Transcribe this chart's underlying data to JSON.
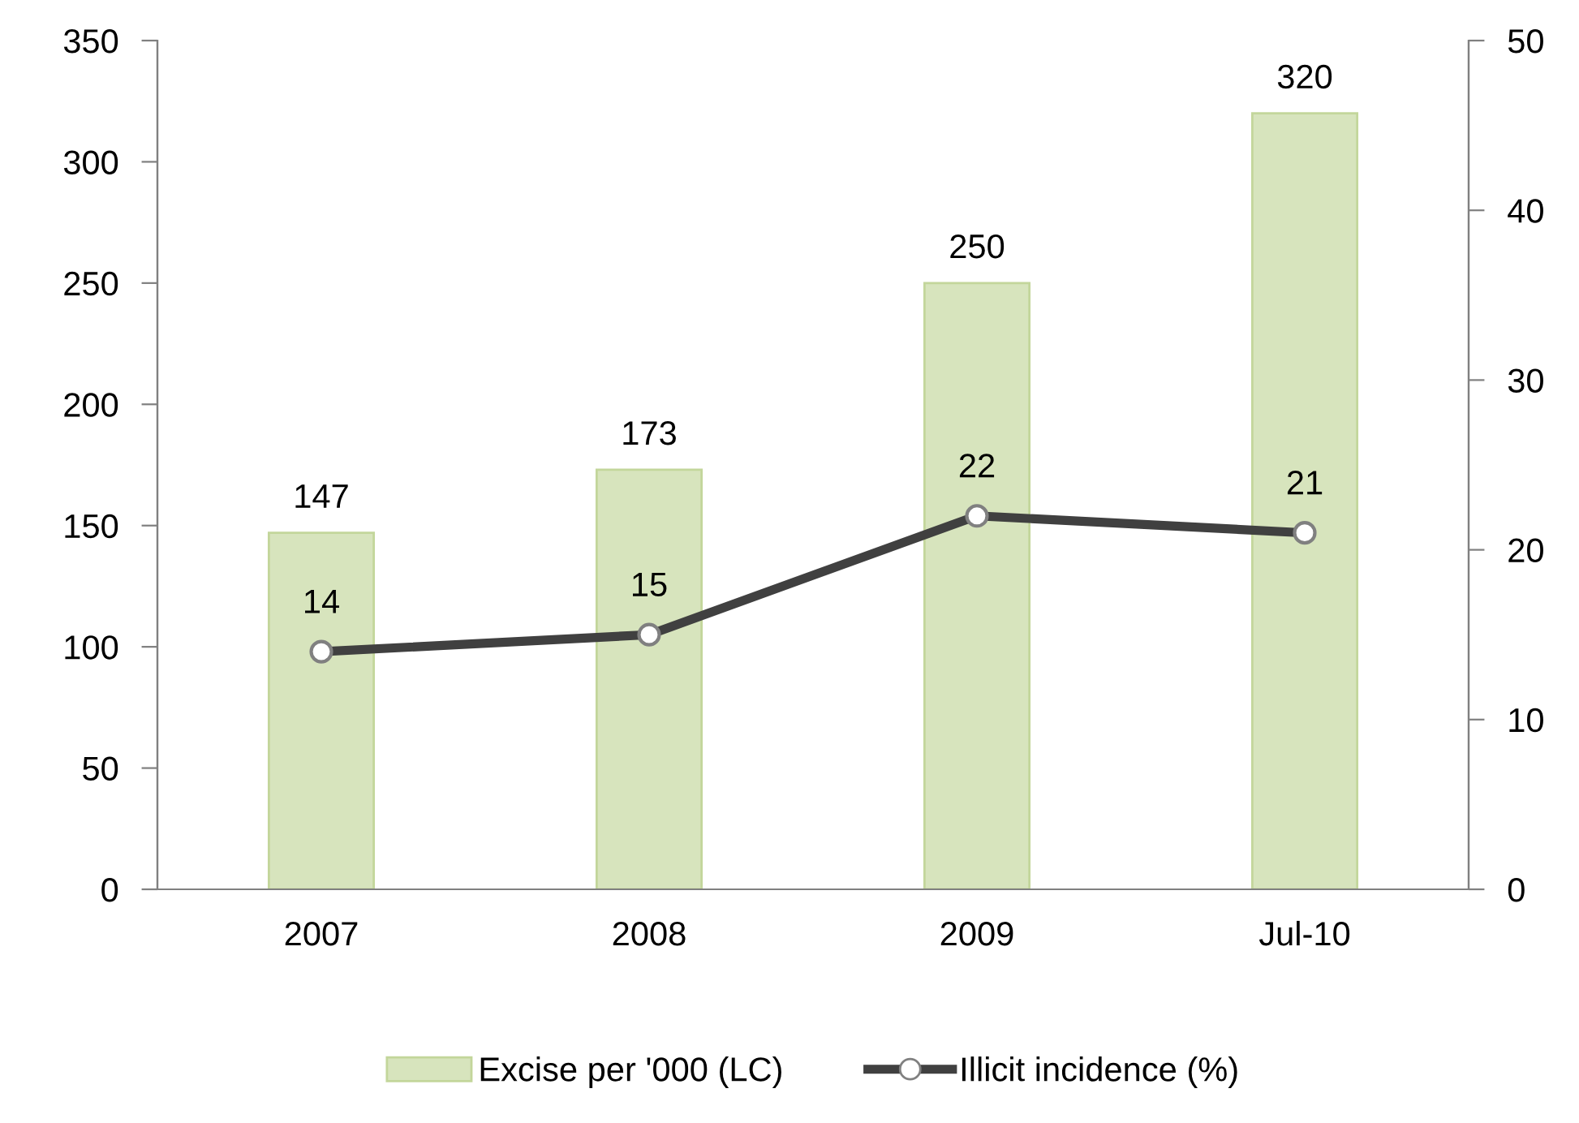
{
  "chart_data": {
    "type": "bar",
    "categories": [
      "2007",
      "2008",
      "2009",
      "Jul-10"
    ],
    "series": [
      {
        "name": "Excise per '000 (LC)",
        "color": "#d7e4bd",
        "values": [
          147,
          173,
          250,
          320
        ]
      },
      {
        "name": "Illicit incidence (%)",
        "type": "line",
        "axis": "y2",
        "color": "#404040",
        "marker": "circle",
        "values": [
          14,
          15,
          22,
          21
        ]
      }
    ],
    "ylim": [
      0,
      350
    ],
    "yticks": [
      0,
      50,
      100,
      150,
      200,
      250,
      300,
      350
    ],
    "y2lim": [
      0,
      50
    ],
    "y2ticks": [
      0,
      10,
      20,
      30,
      40,
      50
    ],
    "data_labels": true,
    "legend": "bottom",
    "grid": false
  }
}
